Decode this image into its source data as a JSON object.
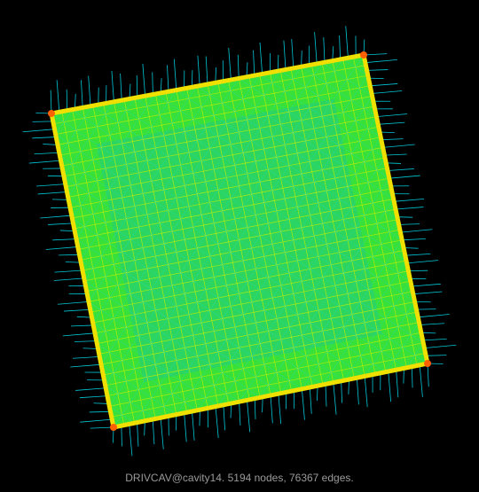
{
  "caption": "DRIVCAV@cavity14. 5194 nodes, 76367 edges.",
  "colors": {
    "background": "#000000",
    "whisker": "#00c8d8",
    "mesh_fill": "#38e03a",
    "mesh_core": "#20c890",
    "mesh_line": "#1fd8c0",
    "mesh_grid": "#c8f000",
    "border": "#f0e000",
    "corner": "#ff6000",
    "caption_text": "#9a9a9a"
  }
}
